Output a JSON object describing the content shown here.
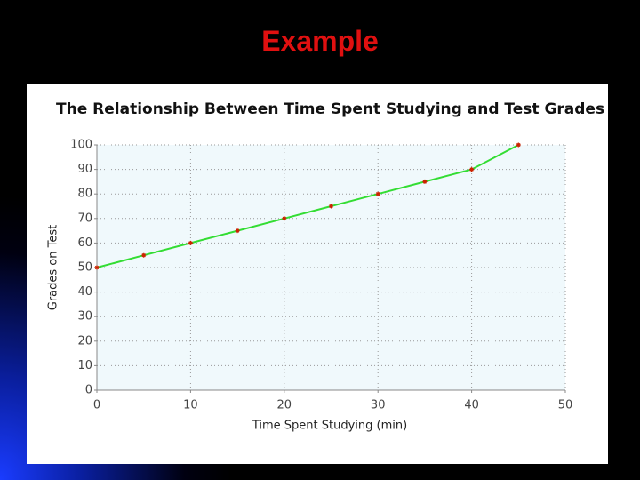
{
  "slide": {
    "title": "Example"
  },
  "chart_data": {
    "type": "line",
    "title": "The Relationship Between Time Spent Studying and Test Grades",
    "x_label": "Time Spent Studying (min)",
    "y_label": "Grades on Test",
    "x": [
      0,
      5,
      10,
      15,
      20,
      25,
      30,
      35,
      40,
      45
    ],
    "values": [
      50,
      55,
      60,
      65,
      70,
      75,
      80,
      85,
      90,
      100
    ],
    "color": "#33dd33",
    "marker_color": "#cc2200",
    "xlim": [
      0,
      50
    ],
    "xticks": [
      0,
      10,
      20,
      30,
      40,
      50
    ],
    "ylim": [
      0,
      100
    ],
    "yticks": [
      0,
      10,
      20,
      30,
      40,
      50,
      60,
      70,
      80,
      90,
      100
    ],
    "grid": true
  }
}
